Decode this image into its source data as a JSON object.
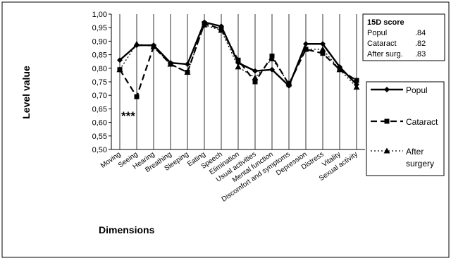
{
  "chart_data": {
    "type": "line",
    "ylabel": "Level value",
    "xlabel": "Dimensions",
    "ylim": [
      0.5,
      1.0
    ],
    "yticks": [
      "1,00",
      "0,95",
      "0,90",
      "0,85",
      "0,80",
      "0,75",
      "0,70",
      "0,65",
      "0,60",
      "0,55",
      "0,50"
    ],
    "grid": "vertical lines at categories",
    "legend_position": "right",
    "categories": [
      "Moving",
      "Seeing",
      "Hearing",
      "Breathing",
      "Sleeping",
      "Eating",
      "Speech",
      "Elimination",
      "Usual activities",
      "Mental function",
      "Discomfort and symptoms",
      "Depression",
      "Distress",
      "Vitality",
      "Sexual activity"
    ],
    "series": [
      {
        "name": "Popul",
        "style": "solid-diamond",
        "values": [
          0.83,
          0.885,
          0.885,
          0.82,
          0.815,
          0.97,
          0.955,
          0.82,
          0.79,
          0.795,
          0.735,
          0.89,
          0.89,
          0.805,
          0.74
        ]
      },
      {
        "name": "Cataract",
        "style": "dashed-square",
        "values": [
          0.795,
          0.695,
          0.88,
          0.815,
          0.785,
          0.965,
          0.945,
          0.83,
          0.75,
          0.845,
          0.74,
          0.87,
          0.855,
          0.795,
          0.755
        ]
      },
      {
        "name": "After surgery",
        "style": "dotted-triangle",
        "values": [
          0.795,
          0.89,
          0.88,
          0.815,
          0.785,
          0.96,
          0.94,
          0.805,
          0.765,
          0.835,
          0.745,
          0.87,
          0.87,
          0.795,
          0.73
        ]
      }
    ],
    "annotation": "***",
    "score_box": {
      "title": "15D score",
      "rows": [
        {
          "label": "Popul",
          "value": ".84"
        },
        {
          "label": "Cataract",
          "value": ".82"
        },
        {
          "label": "After surg.",
          "value": ".83"
        }
      ]
    }
  }
}
